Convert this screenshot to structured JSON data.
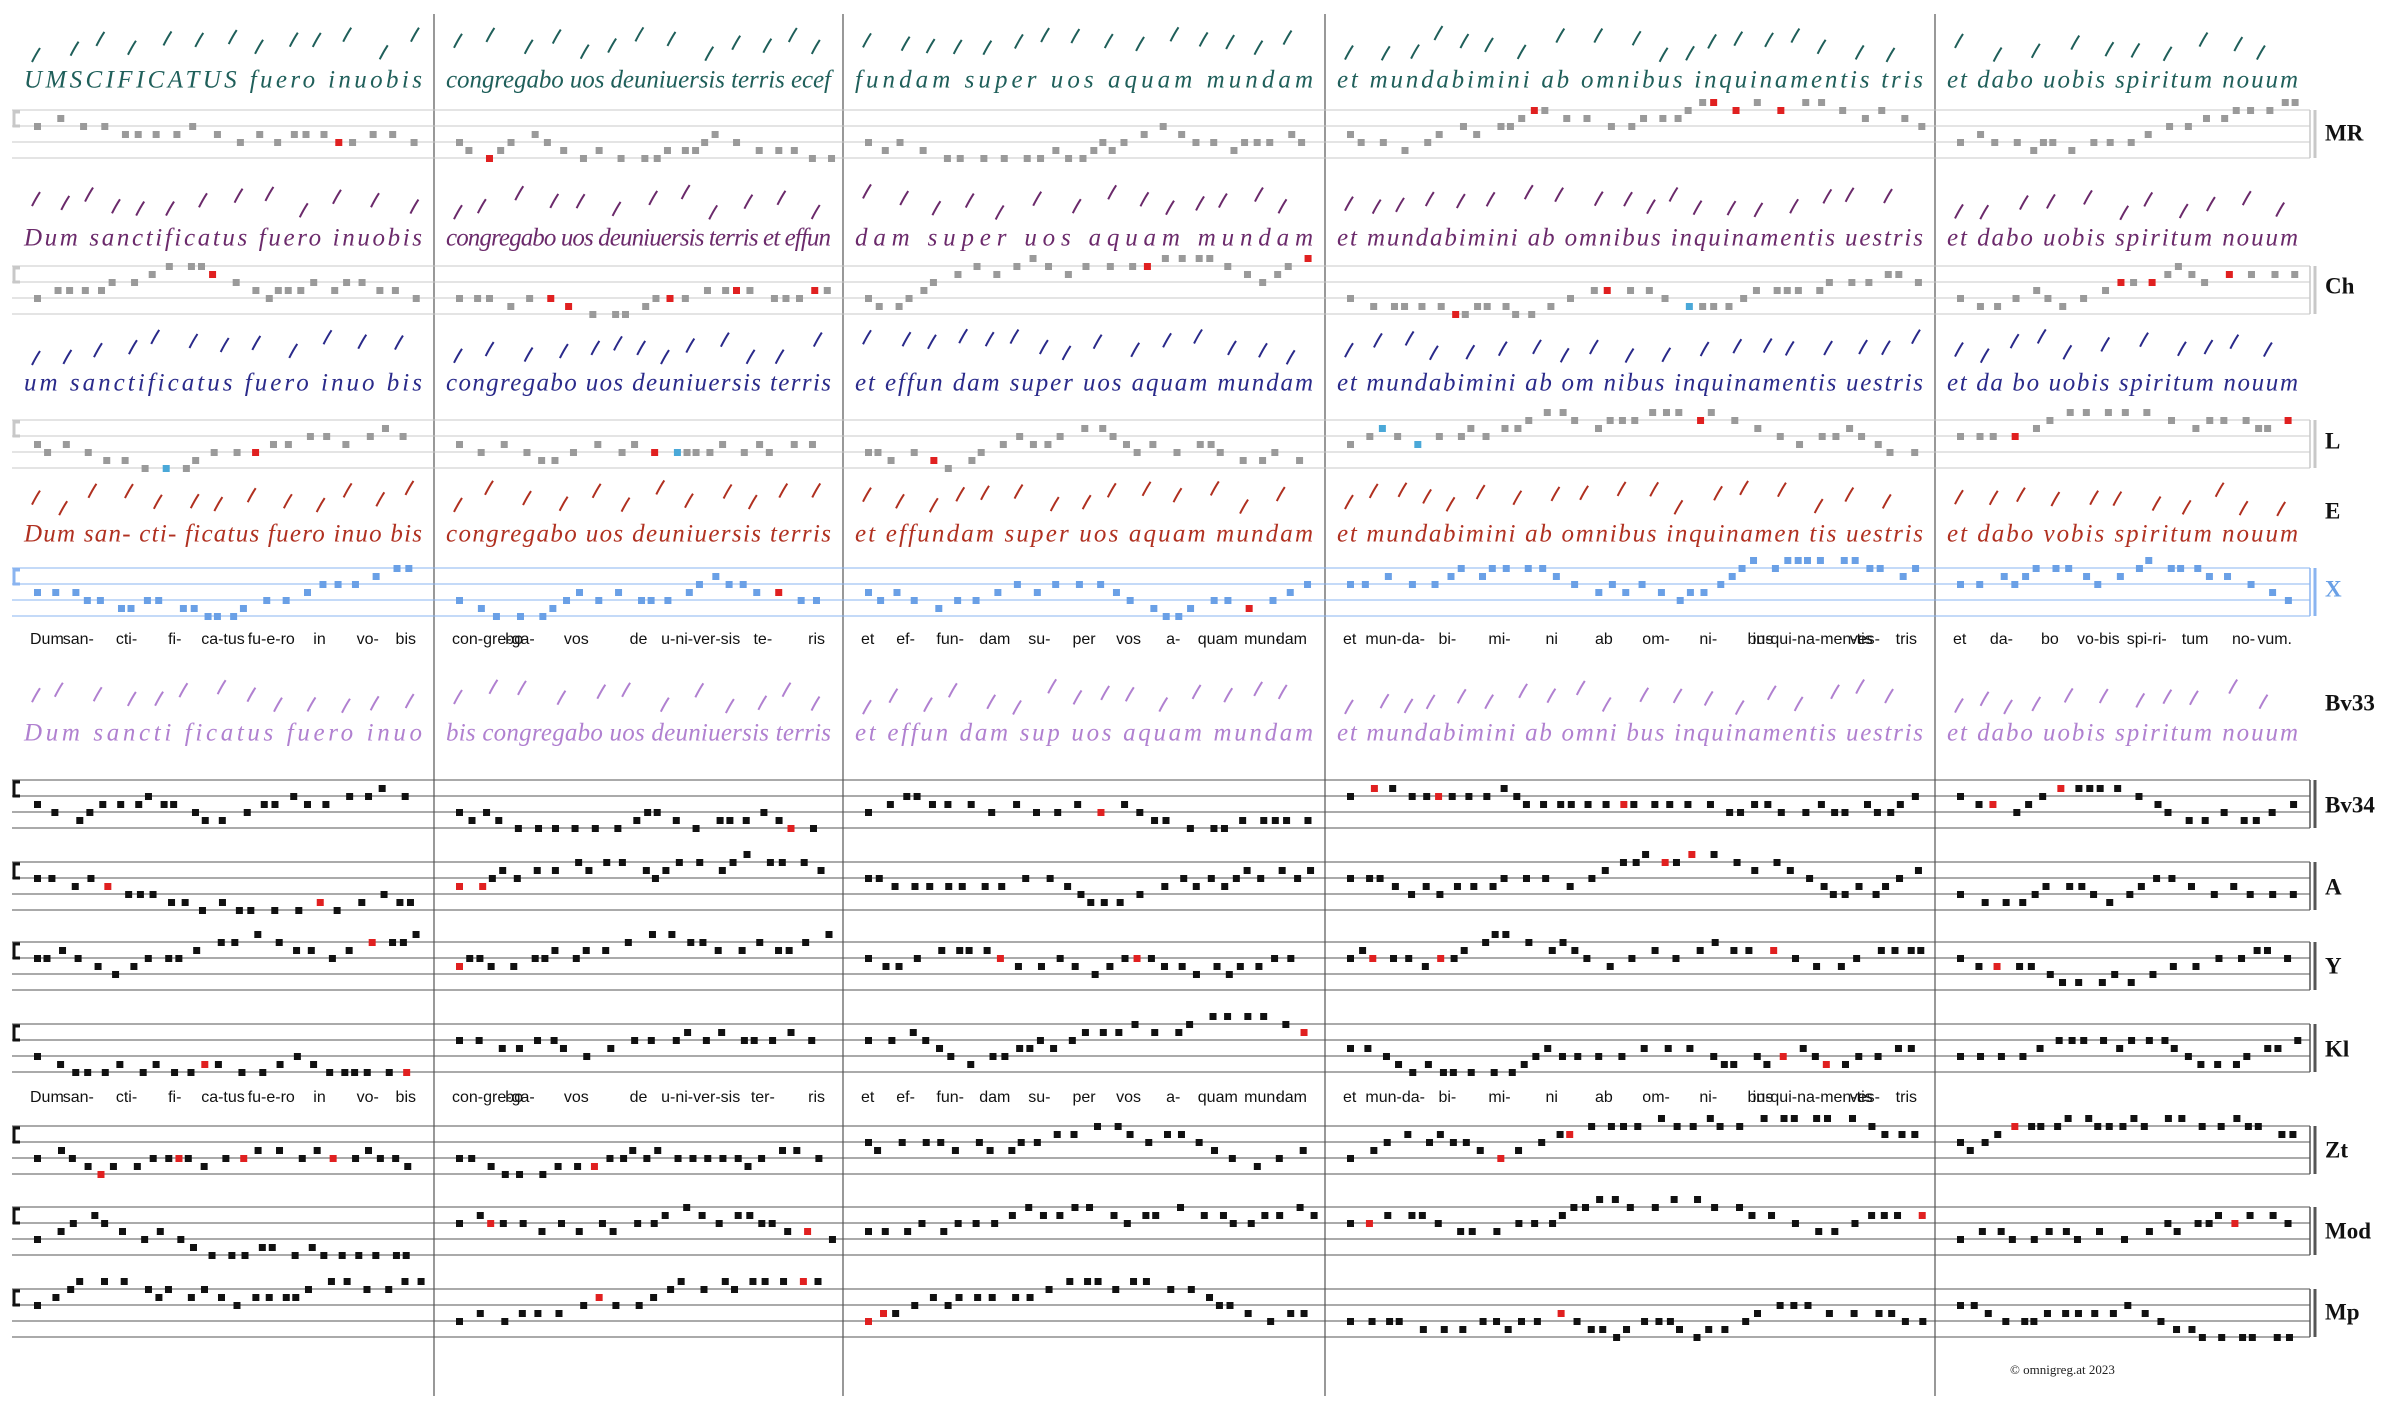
{
  "rows": [
    {
      "label": "MR",
      "text": [
        "UMSCIFICATUS fuero inuobis",
        "congregabo uos deuniuersis terris ecef",
        "fundam super uos aquam mundam",
        "et mundabimini ab omnibus inquinamentis tris",
        "et dabo uobis spiritum nouum"
      ]
    },
    {
      "label": "Ch",
      "text": [
        "Dum sanctificatus fuero inuobis",
        "congregabo uos deuniuersis terris et effun",
        "dam super uos aquam mundam",
        "et mundabimini ab omnibus inquinamentis uestris",
        "et dabo uobis spiritum nouum"
      ]
    },
    {
      "label": "L",
      "text": [
        "um sanctificatus fuero inuo bis",
        "congregabo uos deuniuersis terris",
        "et effun dam super uos aquam mundam",
        "et mundabimini ab om nibus inquinamentis uestris",
        "et da bo uobis spiritum nouum"
      ]
    },
    {
      "label": "E",
      "text": [
        "Dum san- cti- ficatus fuero inuo bis",
        "congregabo uos deuniuersis terris",
        "et effundam super uos aquam mundam",
        "et mundabimini ab omnibus inquinamen tis uestris",
        "et dabo vobis spiritum nouum"
      ]
    },
    {
      "label": "X"
    },
    {
      "label": "Bv33",
      "text": [
        "Dum sancti ficatus fuero inuo",
        "bis congregabo uos deuniuersis terris",
        "et effun dam sup uos aquam mundam",
        "et mundabimini ab omni bus inquinamentis uestris",
        "et dabo uobis spiritum nouum"
      ]
    },
    {
      "label": "Bv34"
    },
    {
      "label": "A"
    },
    {
      "label": "Y"
    },
    {
      "label": "Kl"
    },
    {
      "label": "Zt"
    },
    {
      "label": "Mod"
    },
    {
      "label": "Mp"
    }
  ],
  "syllables": [
    [
      [
        "Dum",
        "san-",
        "cti-",
        "fi-",
        "ca-tus",
        "fu-e-ro",
        "in",
        "vo-",
        "bis"
      ],
      [
        "con-gre-ga-",
        "bo",
        "vos",
        "de",
        "u-ni-ver-sis",
        "te-",
        "ris"
      ],
      [
        "et",
        "ef-",
        "fun-",
        "dam",
        "su-",
        "per",
        "vos",
        "a-",
        "quam",
        "mun-",
        "dam"
      ],
      [
        "et",
        "mun-da-",
        "bi-",
        "mi-",
        "ni",
        "ab",
        "om-",
        "ni-",
        "bus",
        "in-qui-na-men-tis",
        "ves-",
        "tris"
      ],
      [
        "et",
        "da-",
        "bo",
        "vo-bis",
        "spi-ri-",
        "tum",
        "no-",
        "vum."
      ]
    ],
    [
      [
        "Dum",
        "san-",
        "cti-",
        "fi-",
        "ca-tus",
        "fu-e-ro",
        "in",
        "vo-",
        "bis"
      ],
      [
        "con-gre-ga-",
        "bo",
        "vos",
        "de",
        "u-ni-ver-sis",
        "ter-",
        "ris"
      ],
      [
        "et",
        "ef-",
        "fun-",
        "dam",
        "su-",
        "per",
        "vos",
        "a-",
        "quam",
        "mun-",
        "dam"
      ],
      [
        "et",
        "mun-da-",
        "bi-",
        "mi-",
        "ni",
        "ab",
        "om-",
        "ni-",
        "bus",
        "in-qui-na-men-tis",
        "ves-",
        "tris"
      ]
    ]
  ],
  "copyright": "© omnigreg.at  2023"
}
